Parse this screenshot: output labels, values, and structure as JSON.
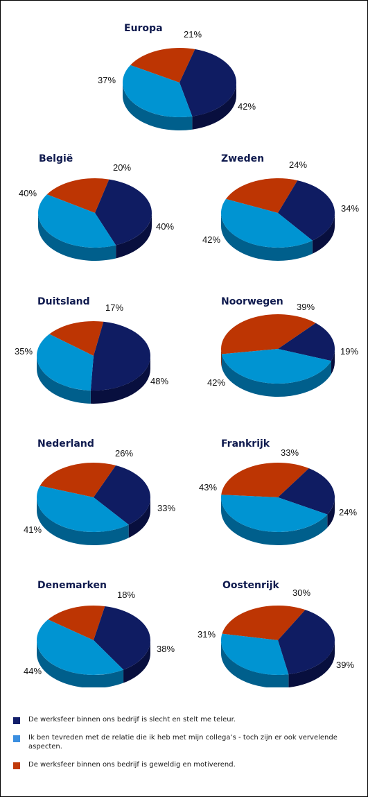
{
  "legend": {
    "items": [
      {
        "label": "De werksfeer binnen ons bedrijf is slecht en stelt me teleur.",
        "color": "#121e6a"
      },
      {
        "label": "Ik ben tevreden met de relatie die ik heb met mijn collega’s - toch zijn er ook vervelende aspecten.",
        "color": "#3b8fe0"
      },
      {
        "label": "De werksfeer binnen ons bedrijf is geweldig en motiverend.",
        "color": "#c03a0a"
      }
    ]
  },
  "chart_data": [
    {
      "type": "pie",
      "title": "Europa",
      "categories": [
        "slecht",
        "tevreden",
        "geweldig"
      ],
      "values": [
        42,
        37,
        21
      ],
      "labels": [
        "42%",
        "37%",
        "21%"
      ]
    },
    {
      "type": "pie",
      "title": "België",
      "categories": [
        "slecht",
        "tevreden",
        "geweldig"
      ],
      "values": [
        40,
        40,
        20
      ],
      "labels": [
        "40%",
        "40%",
        "20%"
      ]
    },
    {
      "type": "pie",
      "title": "Zweden",
      "categories": [
        "slecht",
        "tevreden",
        "geweldig"
      ],
      "values": [
        34,
        42,
        24
      ],
      "labels": [
        "34%",
        "42%",
        "24%"
      ]
    },
    {
      "type": "pie",
      "title": "Duitsland",
      "categories": [
        "slecht",
        "tevreden",
        "geweldig"
      ],
      "values": [
        48,
        35,
        17
      ],
      "labels": [
        "48%",
        "35%",
        "17%"
      ]
    },
    {
      "type": "pie",
      "title": "Noorwegen",
      "categories": [
        "slecht",
        "tevreden",
        "geweldig"
      ],
      "values": [
        19,
        42,
        39
      ],
      "labels": [
        "19%",
        "42%",
        "39%"
      ]
    },
    {
      "type": "pie",
      "title": "Nederland",
      "categories": [
        "slecht",
        "tevreden",
        "geweldig"
      ],
      "values": [
        33,
        41,
        26
      ],
      "labels": [
        "33%",
        "41%",
        "26%"
      ]
    },
    {
      "type": "pie",
      "title": "Frankrijk",
      "categories": [
        "slecht",
        "tevreden",
        "geweldig"
      ],
      "values": [
        24,
        43,
        33
      ],
      "labels": [
        "24%",
        "43%",
        "33%"
      ]
    },
    {
      "type": "pie",
      "title": "Denemarken",
      "categories": [
        "slecht",
        "tevreden",
        "geweldig"
      ],
      "values": [
        38,
        44,
        18
      ],
      "labels": [
        "38%",
        "44%",
        "18%"
      ]
    },
    {
      "type": "pie",
      "title": "Oostenrijk",
      "categories": [
        "slecht",
        "tevreden",
        "geweldig"
      ],
      "values": [
        39,
        31,
        30
      ],
      "labels": [
        "39%",
        "31%",
        "30%"
      ]
    }
  ]
}
